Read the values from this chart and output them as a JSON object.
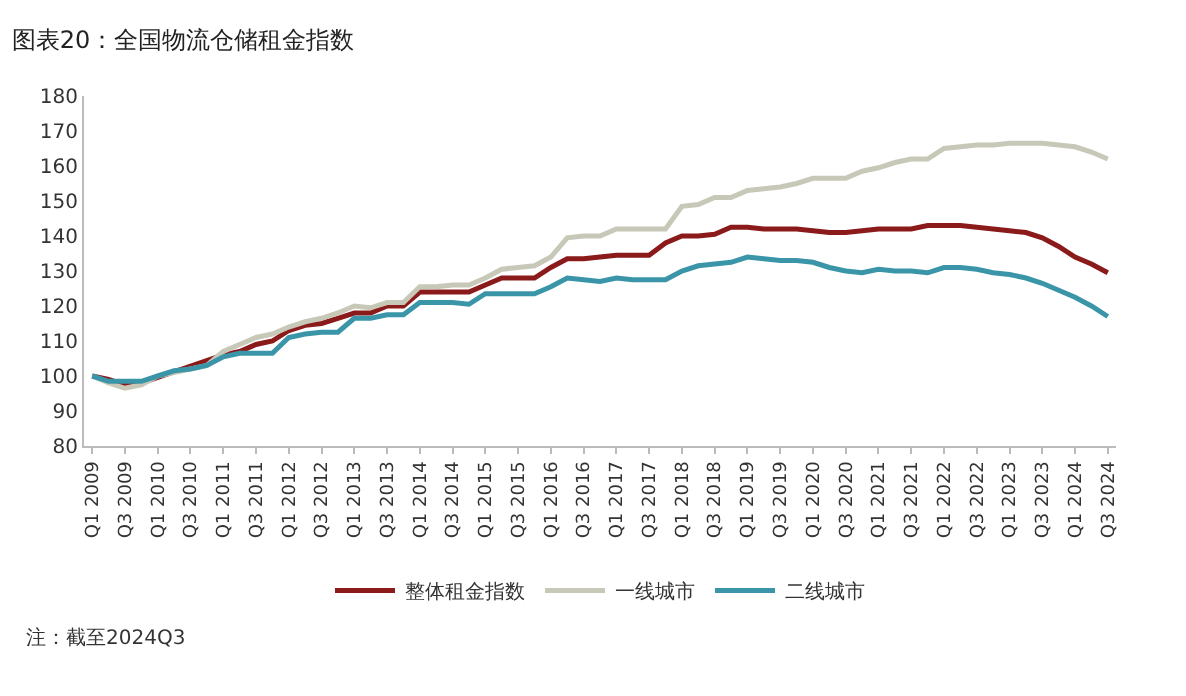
{
  "chart_data": {
    "type": "line",
    "title": "图表20：全国物流仓储租金指数",
    "categories": [
      "Q1 2009",
      null,
      "Q3 2009",
      null,
      "Q1 2010",
      null,
      "Q3 2010",
      null,
      "Q1 2011",
      null,
      "Q3 2011",
      null,
      "Q1 2012",
      null,
      "Q3 2012",
      null,
      "Q1 2013",
      null,
      "Q3 2013",
      null,
      "Q1 2014",
      null,
      "Q3 2014",
      null,
      "Q1 2015",
      null,
      "Q3 2015",
      null,
      "Q1 2016",
      null,
      "Q3 2016",
      null,
      "Q1 2017",
      null,
      "Q3 2017",
      null,
      "Q1 2018",
      null,
      "Q3 2018",
      null,
      "Q1 2019",
      null,
      "Q3 2019",
      null,
      "Q1 2020",
      null,
      "Q3 2020",
      null,
      "Q1 2021",
      null,
      "Q3 2021",
      null,
      "Q1 2022",
      null,
      "Q3 2022",
      null,
      "Q1 2023",
      null,
      "Q3 2023",
      null,
      "Q1 2024",
      null,
      "Q3 2024"
    ],
    "series": [
      {
        "name": "整体租金指数",
        "color": "#8b1a1a",
        "values": [
          100,
          99,
          97.5,
          98,
          null,
          null,
          null,
          null,
          106,
          107,
          109,
          110,
          113,
          114.5,
          115,
          116.5,
          118,
          118,
          120,
          120,
          124,
          124,
          124,
          124,
          126,
          128,
          128,
          128,
          131,
          133.5,
          133.5,
          134,
          134.5,
          134.5,
          134.5,
          138,
          140,
          140,
          140.5,
          142.5,
          142.5,
          142,
          142,
          142,
          141.5,
          141,
          141,
          141.5,
          142,
          142,
          142,
          143,
          143,
          143,
          142.5,
          142,
          141.5,
          141,
          139.5,
          137,
          134,
          132,
          129.5
        ]
      },
      {
        "name": "一线城市",
        "color": "#c8c8b8",
        "values": [
          100,
          98,
          96.5,
          97.5,
          100,
          101,
          102,
          103,
          107,
          109,
          111,
          112,
          114,
          115.5,
          116.5,
          118,
          120,
          119.5,
          121,
          121,
          125.5,
          125.5,
          126,
          126,
          128,
          130.5,
          131,
          131.5,
          134,
          139.5,
          140,
          140,
          142,
          142,
          142,
          142,
          148.5,
          149,
          151,
          151,
          153,
          153.5,
          154,
          155,
          156.5,
          156.5,
          156.5,
          158.5,
          159.5,
          161,
          162,
          162,
          165,
          165.5,
          166,
          166,
          166.5,
          166.5,
          166.5,
          166,
          165.5,
          164,
          162
        ]
      },
      {
        "name": "二线城市",
        "color": "#3a95a8",
        "values": [
          100,
          98.5,
          98.5,
          98.5,
          100,
          101.5,
          102,
          103,
          105.5,
          106.5,
          106.5,
          106.5,
          111,
          112,
          112.5,
          112.5,
          116.5,
          116.5,
          117.5,
          117.5,
          121,
          121,
          121,
          120.5,
          123.5,
          123.5,
          123.5,
          123.5,
          125.5,
          128,
          127.5,
          127,
          128,
          127.5,
          127.5,
          127.5,
          130,
          131.5,
          132,
          132.5,
          134,
          133.5,
          133,
          133,
          132.5,
          131,
          130,
          129.5,
          130.5,
          130,
          130,
          129.5,
          131,
          131,
          130.5,
          129.5,
          129,
          128,
          126.5,
          124.5,
          122.5,
          120,
          117
        ]
      }
    ],
    "ylim": [
      80,
      180
    ],
    "yticks": [
      80,
      90,
      100,
      110,
      120,
      130,
      140,
      150,
      160,
      170,
      180
    ],
    "grid": false,
    "legend": "bottom",
    "marker": "none",
    "line_style": "solid",
    "annotations": [
      "注：截至2024Q3"
    ]
  }
}
